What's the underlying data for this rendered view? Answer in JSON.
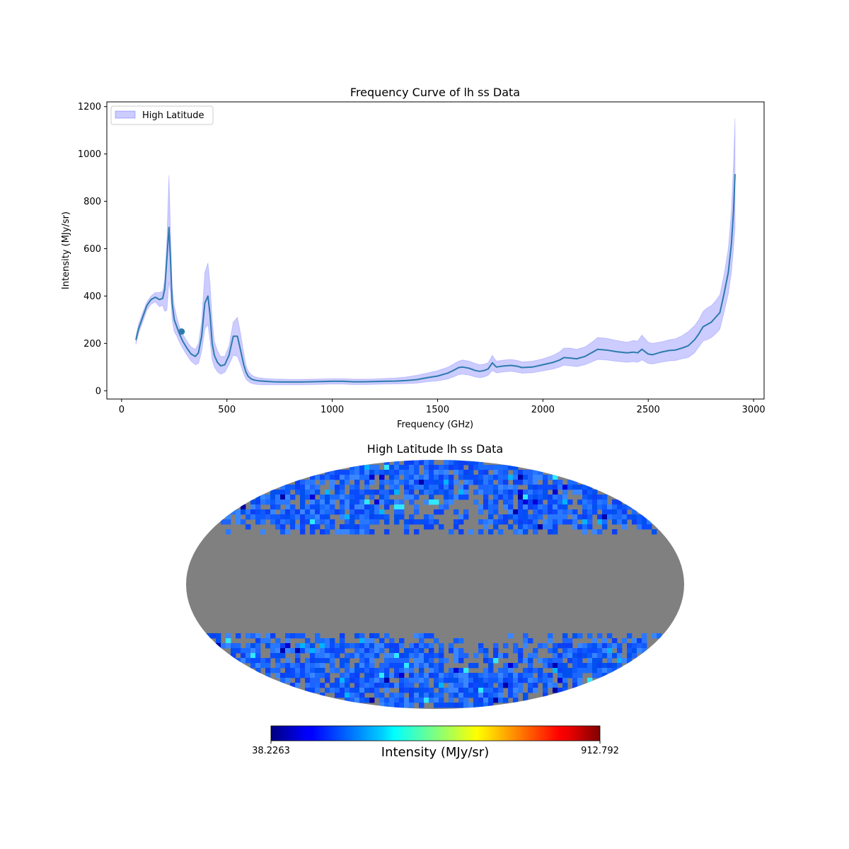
{
  "chart_data": [
    {
      "type": "line",
      "title": "Frequency Curve of lh ss Data",
      "xlabel": "Frequency (GHz)",
      "ylabel": "Intensity (MJy/sr)",
      "xlim": [
        -70,
        3050
      ],
      "ylim": [
        -35,
        1220
      ],
      "xticks": [
        0,
        500,
        1000,
        1500,
        2000,
        2500,
        3000
      ],
      "yticks": [
        0,
        200,
        400,
        600,
        800,
        1000,
        1200
      ],
      "legend": {
        "label": "High Latitude",
        "location": "upper-left"
      },
      "colors": {
        "line": "#2e7bad",
        "band": "#0000ff",
        "band_opacity": 0.2
      },
      "marker": {
        "x": 285,
        "y": 250
      },
      "series": [
        {
          "name": "mean",
          "x": [
            68,
            80,
            100,
            120,
            140,
            160,
            180,
            195,
            205,
            215,
            225,
            232,
            240,
            250,
            262,
            275,
            290,
            310,
            330,
            350,
            365,
            380,
            395,
            410,
            420,
            430,
            440,
            455,
            470,
            490,
            510,
            530,
            550,
            565,
            580,
            590,
            600,
            615,
            630,
            650,
            680,
            720,
            760,
            800,
            850,
            900,
            950,
            1000,
            1050,
            1100,
            1150,
            1200,
            1250,
            1300,
            1350,
            1400,
            1450,
            1500,
            1550,
            1580,
            1600,
            1620,
            1650,
            1680,
            1700,
            1720,
            1740,
            1760,
            1770,
            1780,
            1800,
            1820,
            1850,
            1880,
            1900,
            1950,
            2000,
            2050,
            2080,
            2100,
            2130,
            2160,
            2200,
            2240,
            2260,
            2300,
            2350,
            2400,
            2430,
            2450,
            2470,
            2500,
            2520,
            2550,
            2570,
            2600,
            2630,
            2660,
            2690,
            2720,
            2740,
            2760,
            2780,
            2800,
            2820,
            2840,
            2860,
            2880,
            2895,
            2905,
            2912
          ],
          "y": [
            215,
            260,
            310,
            360,
            385,
            395,
            385,
            390,
            430,
            560,
            690,
            560,
            370,
            300,
            270,
            240,
            210,
            180,
            155,
            145,
            160,
            230,
            370,
            400,
            320,
            200,
            150,
            120,
            105,
            110,
            150,
            230,
            230,
            170,
            110,
            80,
            62,
            50,
            45,
            42,
            40,
            38,
            37,
            37,
            37,
            38,
            39,
            40,
            40,
            38,
            38,
            39,
            40,
            41,
            43,
            47,
            55,
            62,
            75,
            88,
            98,
            100,
            95,
            85,
            82,
            85,
            92,
            118,
            108,
            100,
            103,
            105,
            107,
            103,
            98,
            100,
            110,
            120,
            130,
            140,
            138,
            135,
            145,
            165,
            175,
            172,
            165,
            160,
            163,
            160,
            175,
            155,
            152,
            160,
            165,
            170,
            172,
            180,
            190,
            215,
            240,
            270,
            280,
            290,
            310,
            330,
            410,
            500,
            620,
            760,
            915
          ]
        },
        {
          "name": "upper",
          "y": [
            230,
            280,
            330,
            375,
            400,
            415,
            415,
            420,
            470,
            640,
            910,
            690,
            440,
            360,
            310,
            270,
            240,
            210,
            185,
            175,
            200,
            290,
            500,
            540,
            450,
            300,
            210,
            170,
            145,
            145,
            190,
            290,
            310,
            240,
            160,
            110,
            85,
            68,
            60,
            55,
            52,
            50,
            49,
            48,
            48,
            49,
            50,
            51,
            51,
            49,
            49,
            50,
            52,
            54,
            58,
            65,
            75,
            85,
            100,
            115,
            125,
            130,
            125,
            115,
            110,
            112,
            118,
            150,
            135,
            125,
            128,
            130,
            132,
            128,
            122,
            125,
            135,
            150,
            165,
            180,
            180,
            175,
            185,
            210,
            225,
            222,
            212,
            205,
            212,
            210,
            235,
            205,
            200,
            205,
            208,
            215,
            220,
            232,
            250,
            275,
            300,
            335,
            350,
            360,
            380,
            405,
            490,
            600,
            760,
            960,
            1150
          ]
        },
        {
          "name": "lower",
          "y": [
            195,
            240,
            290,
            340,
            365,
            375,
            355,
            360,
            335,
            340,
            460,
            420,
            300,
            250,
            230,
            205,
            180,
            150,
            125,
            110,
            115,
            165,
            260,
            280,
            210,
            130,
            100,
            80,
            70,
            78,
            110,
            150,
            145,
            110,
            70,
            50,
            40,
            32,
            28,
            26,
            25,
            25,
            25,
            25,
            25,
            26,
            27,
            28,
            28,
            26,
            26,
            27,
            28,
            29,
            30,
            32,
            38,
            42,
            50,
            60,
            68,
            70,
            66,
            58,
            55,
            58,
            65,
            85,
            80,
            75,
            78,
            80,
            82,
            78,
            74,
            76,
            84,
            92,
            100,
            108,
            105,
            102,
            110,
            125,
            132,
            130,
            124,
            120,
            123,
            120,
            130,
            115,
            113,
            118,
            122,
            126,
            128,
            135,
            140,
            160,
            185,
            210,
            215,
            225,
            240,
            260,
            330,
            410,
            500,
            600,
            690
          ]
        }
      ]
    },
    {
      "type": "heatmap",
      "projection": "mollweide",
      "title": "High Latitude lh ss Data",
      "colorbar": {
        "label": "Intensity (MJy/sr)",
        "min_label": "38.2263",
        "max_label": "912.792",
        "min": 38.2263,
        "max": 912.792,
        "colormap": "jet"
      },
      "masked_color": "#808080",
      "galactic_cut_deg": 30
    }
  ]
}
